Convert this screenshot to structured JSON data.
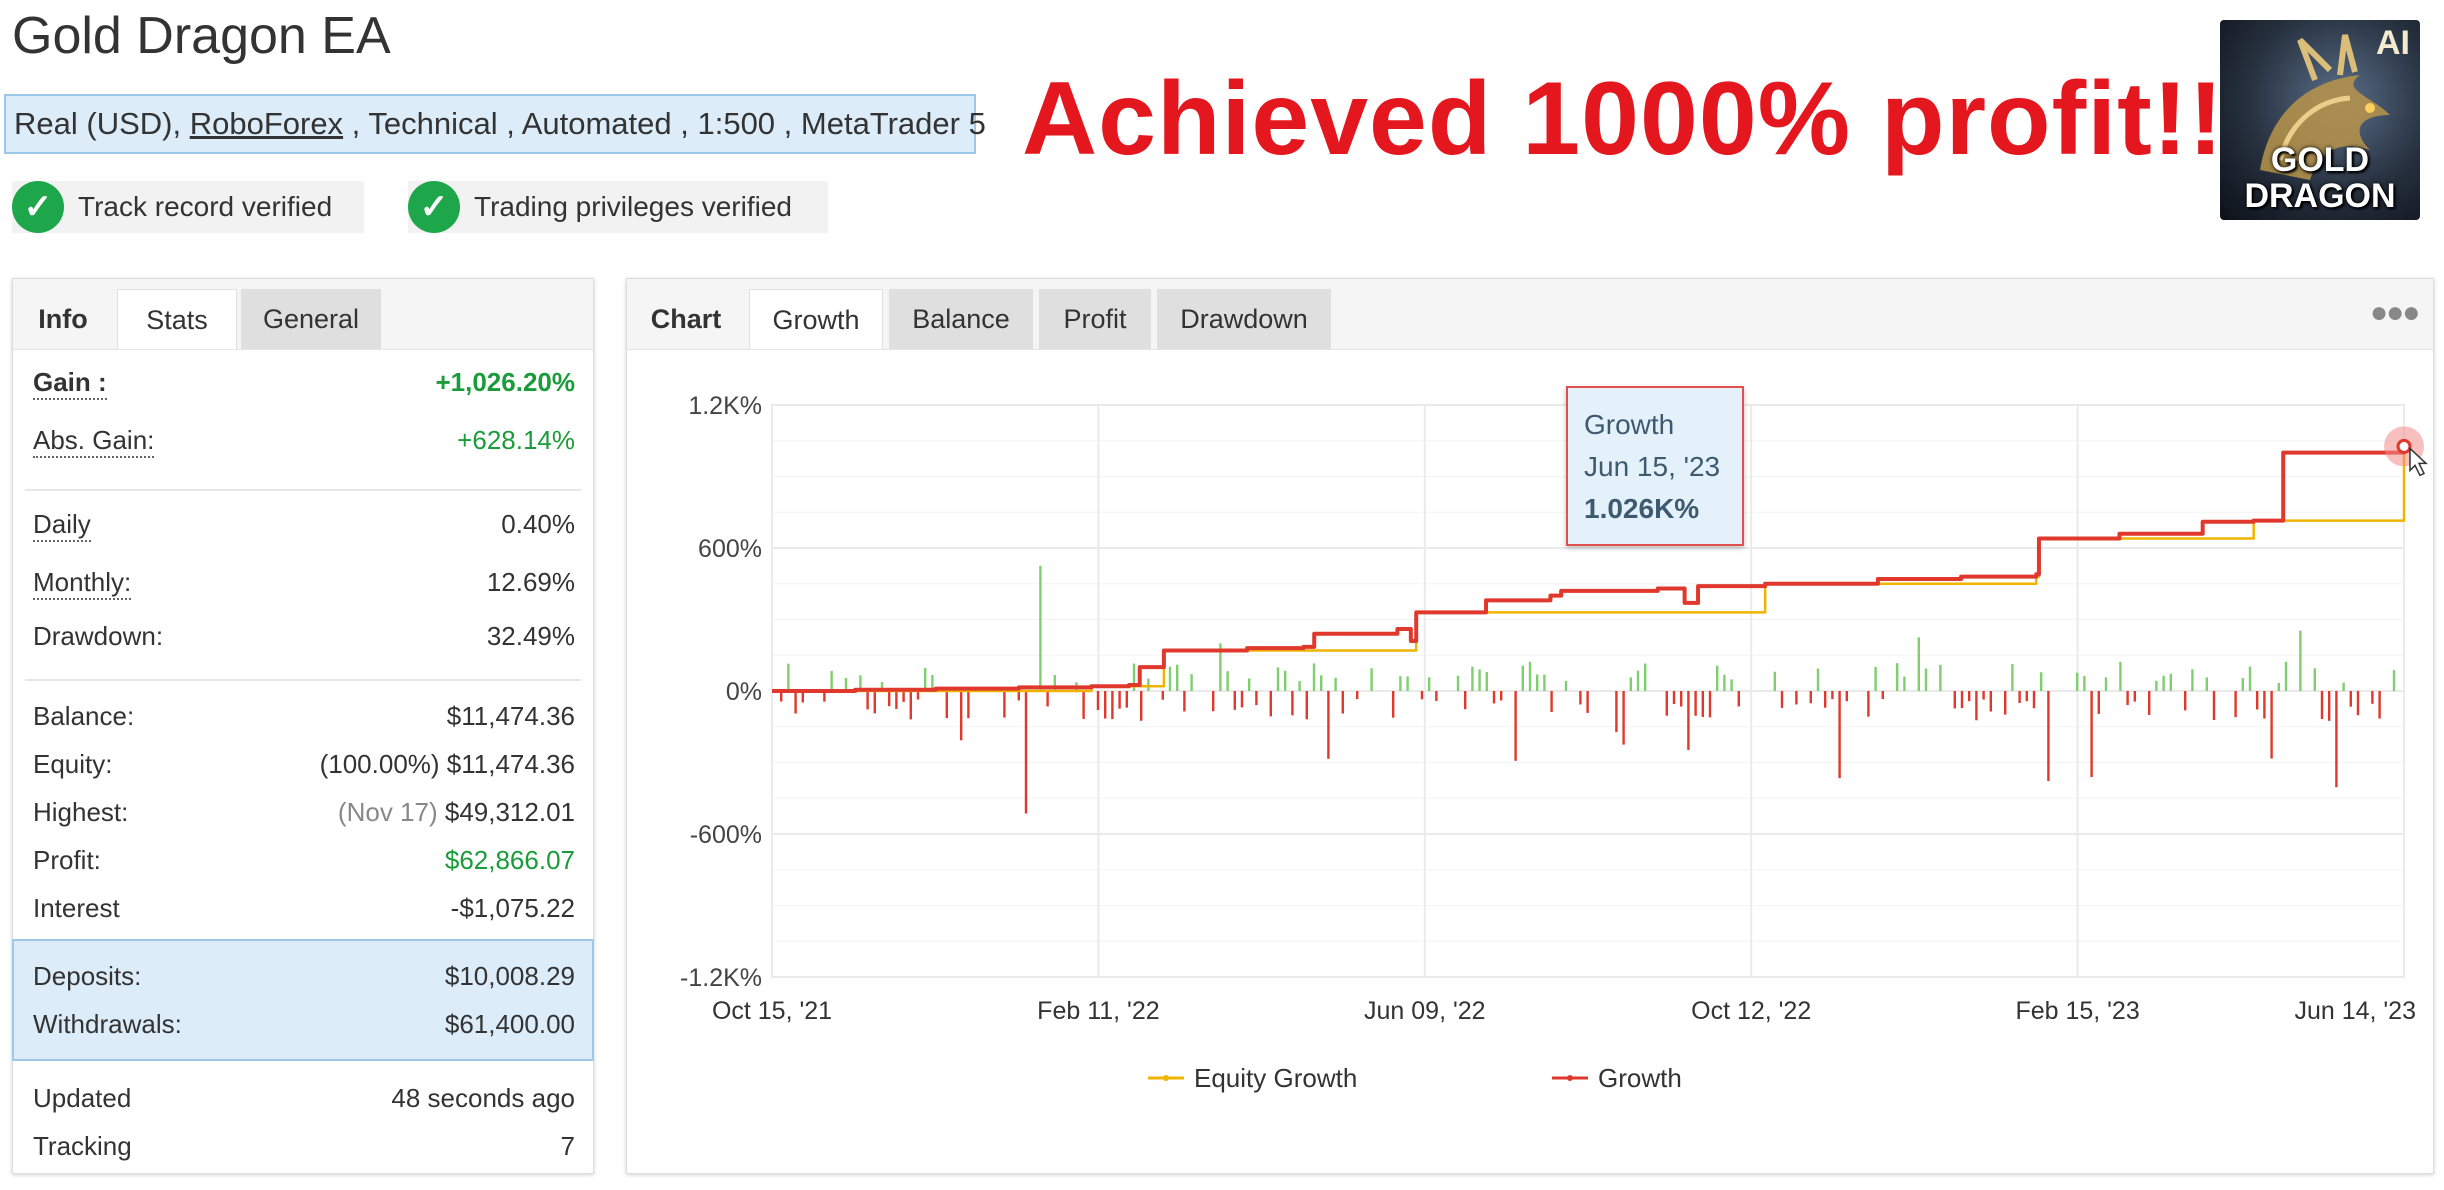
{
  "header": {
    "title": "Gold Dragon EA",
    "account_prefix": "Real (USD), ",
    "broker": "RoboForex",
    "account_suffix": " , Technical , Automated , 1:500 , MetaTrader 5",
    "badges": [
      {
        "label": "Track record verified",
        "icon": "check-circle-icon"
      },
      {
        "label": "Trading privileges verified",
        "icon": "check-circle-icon"
      }
    ],
    "headline": "Achieved 1000% profit!!!",
    "logo": {
      "corner_text": "AI",
      "line1": "GOLD",
      "line2": "DRAGON"
    }
  },
  "left_panel": {
    "tabs": [
      "Info",
      "Stats",
      "General"
    ],
    "active_tab": "Stats",
    "stats": {
      "gain": {
        "label": "Gain :",
        "value": "+1,026.20%"
      },
      "abs_gain": {
        "label": "Abs. Gain:",
        "value": "+628.14%"
      },
      "daily": {
        "label": "Daily",
        "value": "0.40%"
      },
      "monthly": {
        "label": "Monthly:",
        "value": "12.69%"
      },
      "drawdown": {
        "label": "Drawdown:",
        "value": "32.49%"
      },
      "balance": {
        "label": "Balance:",
        "value": "$11,474.36"
      },
      "equity": {
        "label": "Equity:",
        "note": "(100.00%)",
        "value": "$11,474.36"
      },
      "highest": {
        "label": "Highest:",
        "note": "(Nov 17)",
        "value": "$49,312.01"
      },
      "profit": {
        "label": "Profit:",
        "value": "$62,866.07"
      },
      "interest": {
        "label": "Interest",
        "value": "-$1,075.22"
      },
      "deposits": {
        "label": "Deposits:",
        "value": "$10,008.29"
      },
      "withdrawals": {
        "label": "Withdrawals:",
        "value": "$61,400.00"
      },
      "updated": {
        "label": "Updated",
        "value": "48 seconds ago"
      },
      "tracking": {
        "label": "Tracking",
        "value": "7"
      }
    }
  },
  "right_panel": {
    "tabs": [
      "Chart",
      "Growth",
      "Balance",
      "Profit",
      "Drawdown"
    ],
    "active_tab": "Growth",
    "more_icon": "more-dots-icon",
    "tooltip": {
      "series": "Growth",
      "date": "Jun 15, '23",
      "value": "1.026K%"
    }
  },
  "colors": {
    "growth_line": "#e0382c",
    "equity_line": "#f0b400",
    "positive_bar": "#7fcf6e",
    "negative_bar": "#e0382c",
    "headline": "#e4161e",
    "positive_text": "#1a9c3a"
  },
  "chart_data": {
    "type": "line",
    "x_type": "date",
    "x_range": [
      "2021-10-15",
      "2023-06-15"
    ],
    "ylim": [
      -1200,
      1200
    ],
    "y_tick_labels": [
      "1.2K%",
      "600%",
      "0%",
      "-600%",
      "-1.2K%"
    ],
    "x_tick_labels": [
      "Oct 15, '21",
      "Feb 11, '22",
      "Jun 09, '22",
      "Oct 12, '22",
      "Feb 15, '23",
      "Jun 14, '23"
    ],
    "legend": [
      "Equity Growth",
      "Growth"
    ],
    "series": [
      {
        "name": "Growth",
        "points": [
          [
            "2021-10-15",
            0
          ],
          [
            "2021-11-15",
            5
          ],
          [
            "2021-12-15",
            10
          ],
          [
            "2022-01-15",
            15
          ],
          [
            "2022-02-11",
            20
          ],
          [
            "2022-02-25",
            25
          ],
          [
            "2022-03-01",
            100
          ],
          [
            "2022-03-10",
            170
          ],
          [
            "2022-04-10",
            180
          ],
          [
            "2022-05-01",
            185
          ],
          [
            "2022-05-05",
            240
          ],
          [
            "2022-06-05",
            260
          ],
          [
            "2022-06-10",
            210
          ],
          [
            "2022-06-12",
            330
          ],
          [
            "2022-07-05",
            330
          ],
          [
            "2022-07-08",
            380
          ],
          [
            "2022-08-01",
            400
          ],
          [
            "2022-08-05",
            420
          ],
          [
            "2022-09-10",
            430
          ],
          [
            "2022-09-20",
            370
          ],
          [
            "2022-09-25",
            440
          ],
          [
            "2022-10-20",
            450
          ],
          [
            "2022-12-01",
            470
          ],
          [
            "2023-01-01",
            480
          ],
          [
            "2023-01-29",
            490
          ],
          [
            "2023-01-30",
            640
          ],
          [
            "2023-03-01",
            660
          ],
          [
            "2023-04-01",
            710
          ],
          [
            "2023-04-20",
            715
          ],
          [
            "2023-05-01",
            1000
          ],
          [
            "2023-06-15",
            1026.2
          ]
        ]
      },
      {
        "name": "Equity Growth",
        "points": [
          [
            "2021-10-15",
            0
          ],
          [
            "2022-02-11",
            20
          ],
          [
            "2022-03-10",
            170
          ],
          [
            "2022-06-12",
            330
          ],
          [
            "2022-10-20",
            450
          ],
          [
            "2023-01-29",
            480
          ],
          [
            "2023-01-30",
            640
          ],
          [
            "2023-04-20",
            715
          ],
          [
            "2023-06-15",
            1026.2
          ]
        ]
      }
    ],
    "daily_bars_note": "green (positive) and red (negative) daily change bars around 0%"
  }
}
